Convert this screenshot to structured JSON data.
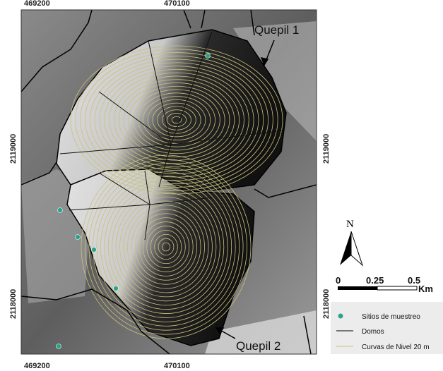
{
  "map": {
    "x_labels": [
      "469200",
      "470100"
    ],
    "y_labels": [
      "2119000",
      "2118000"
    ],
    "annotations": [
      "Quepil 1",
      "Quepil 2"
    ],
    "north": "N",
    "scale": {
      "labels": [
        "0",
        "0.25",
        "0.5"
      ],
      "unit": "Km"
    },
    "legend": [
      "Sitios de muestreo",
      "Domos",
      "Curvas de Nivel 20 m"
    ]
  }
}
